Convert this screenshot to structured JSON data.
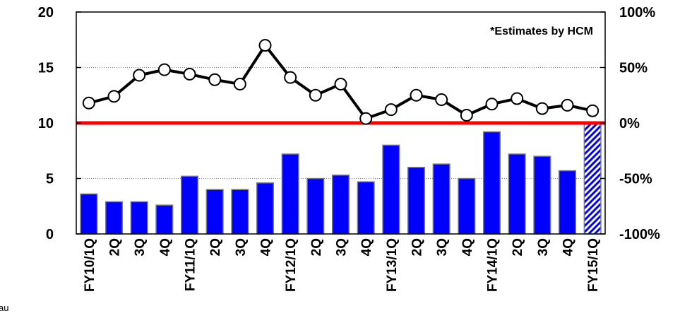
{
  "chart_data": {
    "type": "bar",
    "categories": [
      "FY10/1Q",
      "2Q",
      "3Q",
      "4Q",
      "FY11/1Q",
      "2Q",
      "3Q",
      "4Q",
      "FY12/1Q",
      "2Q",
      "3Q",
      "4Q",
      "FY13/1Q",
      "2Q",
      "3Q",
      "4Q",
      "FY14/1Q",
      "2Q",
      "3Q",
      "4Q",
      "FY15/1Q"
    ],
    "series": [
      {
        "type": "bar",
        "axis": "left",
        "values": [
          3.6,
          2.9,
          2.9,
          2.6,
          5.2,
          4.0,
          4.0,
          4.6,
          7.2,
          5.0,
          5.3,
          4.7,
          8.0,
          6.0,
          6.3,
          5.0,
          9.2,
          7.2,
          7.0,
          5.7,
          10.0
        ],
        "estimated": [
          false,
          false,
          false,
          false,
          false,
          false,
          false,
          false,
          false,
          false,
          false,
          false,
          false,
          false,
          false,
          false,
          false,
          false,
          false,
          false,
          true
        ],
        "color": "#0000ff",
        "estimate_color": "#0000ff"
      },
      {
        "type": "line",
        "axis": "right",
        "unit": "%",
        "values": [
          18,
          24,
          43,
          48,
          44,
          39,
          35,
          70,
          41,
          25,
          35,
          4,
          12,
          25,
          21,
          7,
          17,
          22,
          13,
          16,
          11
        ],
        "color": "#000000"
      }
    ],
    "reference_line": {
      "axis": "right",
      "value": 0,
      "color": "#ff0000"
    },
    "y_left": {
      "ticks": [
        "0",
        "5",
        "10",
        "15",
        "20"
      ],
      "ylim": [
        0,
        20
      ]
    },
    "y_right": {
      "ticks": [
        "-100%",
        "-50%",
        "0%",
        "50%",
        "100%"
      ],
      "ylim": [
        -100,
        100
      ]
    },
    "grid": "horizontal dotted",
    "annotation": "*Estimates by HCM"
  },
  "page": {
    "source_fragment": "au"
  }
}
